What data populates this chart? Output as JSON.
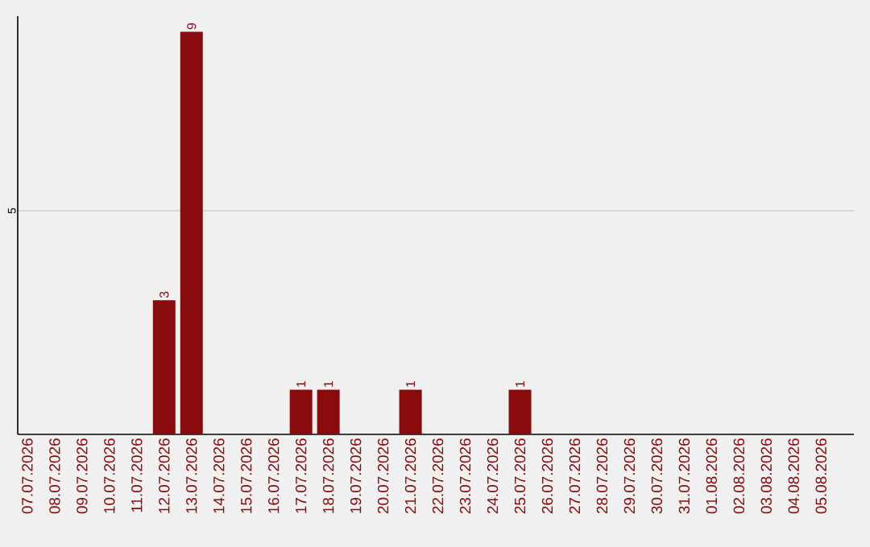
{
  "chart_data": {
    "type": "bar",
    "categories": [
      "07.07.2026",
      "08.07.2026",
      "09.07.2026",
      "10.07.2026",
      "11.07.2026",
      "12.07.2026",
      "13.07.2026",
      "14.07.2026",
      "15.07.2026",
      "16.07.2026",
      "17.07.2026",
      "18.07.2026",
      "19.07.2026",
      "20.07.2026",
      "21.07.2026",
      "22.07.2026",
      "23.07.2026",
      "24.07.2026",
      "25.07.2026",
      "26.07.2026",
      "27.07.2026",
      "28.07.2026",
      "29.07.2026",
      "30.07.2026",
      "31.07.2026",
      "01.08.2026",
      "02.08.2026",
      "03.08.2026",
      "04.08.2026",
      "05.08.2026"
    ],
    "values": [
      0,
      0,
      0,
      0,
      0,
      3,
      9,
      0,
      0,
      0,
      1,
      1,
      0,
      0,
      1,
      0,
      0,
      0,
      1,
      0,
      0,
      0,
      0,
      0,
      0,
      0,
      0,
      0,
      0,
      0
    ],
    "value_labels": [
      null,
      null,
      null,
      null,
      null,
      "3",
      "9",
      null,
      null,
      null,
      "1",
      "1",
      null,
      null,
      "1",
      null,
      null,
      null,
      "1",
      null,
      null,
      null,
      null,
      null,
      null,
      null,
      null,
      null,
      null,
      null
    ],
    "color": "#8a0b0d",
    "ylim": [
      0,
      9.35
    ],
    "yticks": [
      5
    ],
    "grid": "y"
  }
}
